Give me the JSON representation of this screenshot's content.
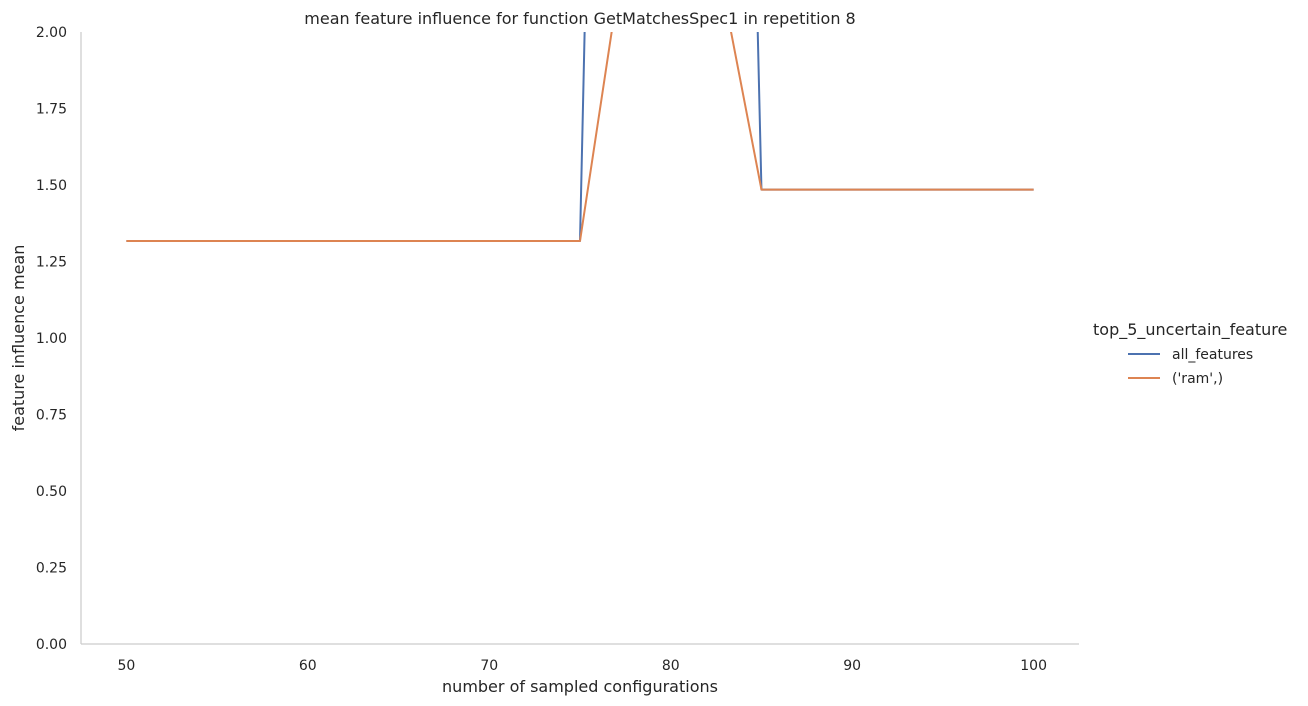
{
  "chart_data": {
    "type": "line",
    "title": "mean feature influence for function GetMatchesSpec1 in repetition 8",
    "xlabel": "number of sampled configurations",
    "ylabel": "feature influence mean",
    "xlim": [
      47.5,
      102.5
    ],
    "ylim": [
      0,
      2
    ],
    "x_ticks": [
      50,
      60,
      70,
      80,
      90,
      100
    ],
    "y_ticks": [
      0.0,
      0.25,
      0.5,
      0.75,
      1.0,
      1.25,
      1.5,
      1.75,
      2.0
    ],
    "x_tick_labels": [
      "50",
      "60",
      "70",
      "80",
      "90",
      "100"
    ],
    "y_tick_labels": [
      "0.00",
      "0.25",
      "0.50",
      "0.75",
      "1.00",
      "1.25",
      "1.50",
      "1.75",
      "2.00"
    ],
    "grid": false,
    "legend": {
      "title": "top_5_uncertain_feature",
      "placement": "right"
    },
    "series": [
      {
        "name": "all_features",
        "color": "#4c72b0",
        "x": [
          50,
          75,
          76,
          84,
          85,
          100
        ],
        "y": [
          1.317,
          1.317,
          4.0,
          4.0,
          1.485,
          1.485
        ]
      },
      {
        "name": "('ram',)",
        "color": "#dd8452",
        "x": [
          50,
          75,
          77,
          83,
          85,
          100
        ],
        "y": [
          1.317,
          1.317,
          2.1,
          2.1,
          1.485,
          1.485
        ]
      }
    ]
  }
}
